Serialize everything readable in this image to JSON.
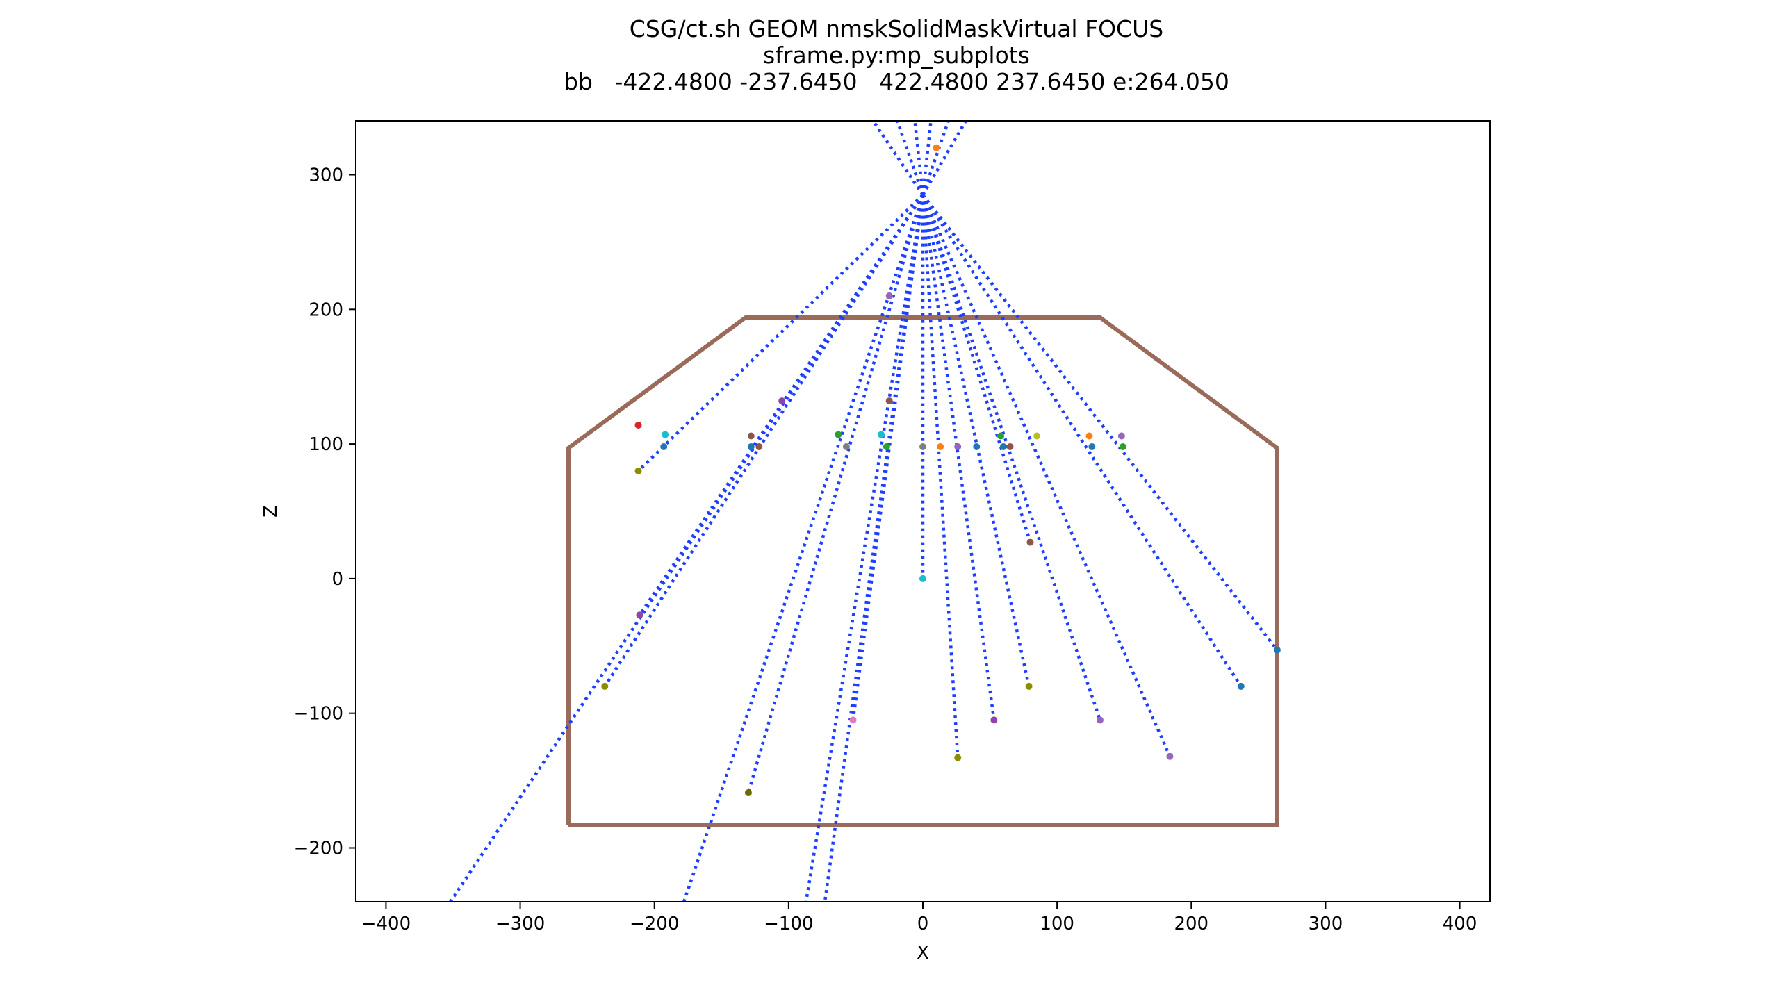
{
  "chart_data": {
    "type": "scatter",
    "title_lines": [
      "CSG/ct.sh GEOM nmskSolidMaskVirtual FOCUS",
      "sframe.py:mp_subplots",
      "bb   -422.4800 -237.6450   422.4800 237.6450 e:264.050"
    ],
    "xlabel": "X",
    "ylabel": "Z",
    "xlim": [
      -422.48,
      422.48
    ],
    "ylim": [
      -240,
      340
    ],
    "xticks": [
      -400,
      -300,
      -200,
      -100,
      0,
      100,
      200,
      300,
      400
    ],
    "xtick_labels": [
      "−400",
      "−300",
      "−200",
      "−100",
      "0",
      "100",
      "200",
      "300",
      "400"
    ],
    "yticks": [
      -200,
      -100,
      0,
      100,
      200,
      300
    ],
    "ytick_labels": [
      "−200",
      "−100",
      "0",
      "100",
      "200",
      "300"
    ],
    "grid": false,
    "outline": {
      "color": "#9a6a5a",
      "points": [
        [
          -264.05,
          -183
        ],
        [
          264.05,
          -183
        ],
        [
          264.05,
          97
        ],
        [
          132,
          194
        ],
        [
          -132,
          194
        ],
        [
          -264.05,
          97
        ],
        [
          -264.05,
          -183
        ]
      ]
    },
    "ray_color": "#1f3fff",
    "ray_focus": [
      0,
      285
    ],
    "ray_endpoints": [
      [
        -352,
        -240
      ],
      [
        -178,
        -240
      ],
      [
        -87,
        -240
      ],
      [
        -73,
        -240
      ],
      [
        -212,
        80
      ],
      [
        -237,
        -80
      ],
      [
        -211,
        -27
      ],
      [
        -130,
        -159
      ],
      [
        -52,
        -105
      ],
      [
        0,
        0
      ],
      [
        26,
        -133
      ],
      [
        53,
        -105
      ],
      [
        79,
        -80
      ],
      [
        80,
        27
      ],
      [
        132,
        -105
      ],
      [
        184,
        -132
      ],
      [
        237,
        -80
      ],
      [
        264,
        -53
      ]
    ],
    "ray_extensions": [
      [
        -37,
        340
      ],
      [
        -19,
        340
      ],
      [
        -6,
        340
      ],
      [
        6,
        340
      ],
      [
        19,
        340
      ],
      [
        32,
        340
      ]
    ],
    "points": [
      {
        "x": -212,
        "y": 80,
        "color": "#8c8c00"
      },
      {
        "x": -237,
        "y": -80,
        "color": "#8c8c00"
      },
      {
        "x": -211,
        "y": -27,
        "color": "#8e44ad"
      },
      {
        "x": -130,
        "y": -159,
        "color": "#6b6b00"
      },
      {
        "x": -52,
        "y": -105,
        "color": "#e377c2"
      },
      {
        "x": 0,
        "y": 0,
        "color": "#17becf"
      },
      {
        "x": 26,
        "y": -133,
        "color": "#8c8c00"
      },
      {
        "x": 53,
        "y": -105,
        "color": "#8e44ad"
      },
      {
        "x": 79,
        "y": -80,
        "color": "#8c8c00"
      },
      {
        "x": 80,
        "y": 27,
        "color": "#8c564b"
      },
      {
        "x": 132,
        "y": -105,
        "color": "#9467bd"
      },
      {
        "x": 184,
        "y": -132,
        "color": "#9467bd"
      },
      {
        "x": 237,
        "y": -80,
        "color": "#1f77b4"
      },
      {
        "x": 264,
        "y": -53,
        "color": "#1f77b4"
      },
      {
        "x": 10,
        "y": 320,
        "color": "#ff7f0e"
      },
      {
        "x": -25,
        "y": 210,
        "color": "#9467bd"
      },
      {
        "x": -105,
        "y": 132,
        "color": "#8e44ad"
      },
      {
        "x": -25,
        "y": 132,
        "color": "#8c564b"
      },
      {
        "x": -212,
        "y": 114,
        "color": "#d62728"
      },
      {
        "x": -192,
        "y": 107,
        "color": "#17becf"
      },
      {
        "x": -193,
        "y": 98,
        "color": "#1f77b4"
      },
      {
        "x": -128,
        "y": 106,
        "color": "#8c564b"
      },
      {
        "x": -128,
        "y": 98,
        "color": "#1f77b4"
      },
      {
        "x": -122,
        "y": 98,
        "color": "#8c564b"
      },
      {
        "x": -63,
        "y": 107,
        "color": "#2ca02c"
      },
      {
        "x": -57,
        "y": 98,
        "color": "#7f7f7f"
      },
      {
        "x": -31,
        "y": 107,
        "color": "#17becf"
      },
      {
        "x": -27,
        "y": 98,
        "color": "#2ca02c"
      },
      {
        "x": 0,
        "y": 98,
        "color": "#7f7f7f"
      },
      {
        "x": 13,
        "y": 98,
        "color": "#ff7f0e"
      },
      {
        "x": 26,
        "y": 98,
        "color": "#9467bd"
      },
      {
        "x": 40,
        "y": 98,
        "color": "#1f77b4"
      },
      {
        "x": 58,
        "y": 106,
        "color": "#2ca02c"
      },
      {
        "x": 60,
        "y": 98,
        "color": "#1f77b4"
      },
      {
        "x": 65,
        "y": 98,
        "color": "#8c564b"
      },
      {
        "x": 85,
        "y": 106,
        "color": "#bcbd22"
      },
      {
        "x": 124,
        "y": 106,
        "color": "#ff7f0e"
      },
      {
        "x": 126,
        "y": 98,
        "color": "#1f77b4"
      },
      {
        "x": 148,
        "y": 106,
        "color": "#9467bd"
      },
      {
        "x": 149,
        "y": 98,
        "color": "#2ca02c"
      }
    ]
  }
}
